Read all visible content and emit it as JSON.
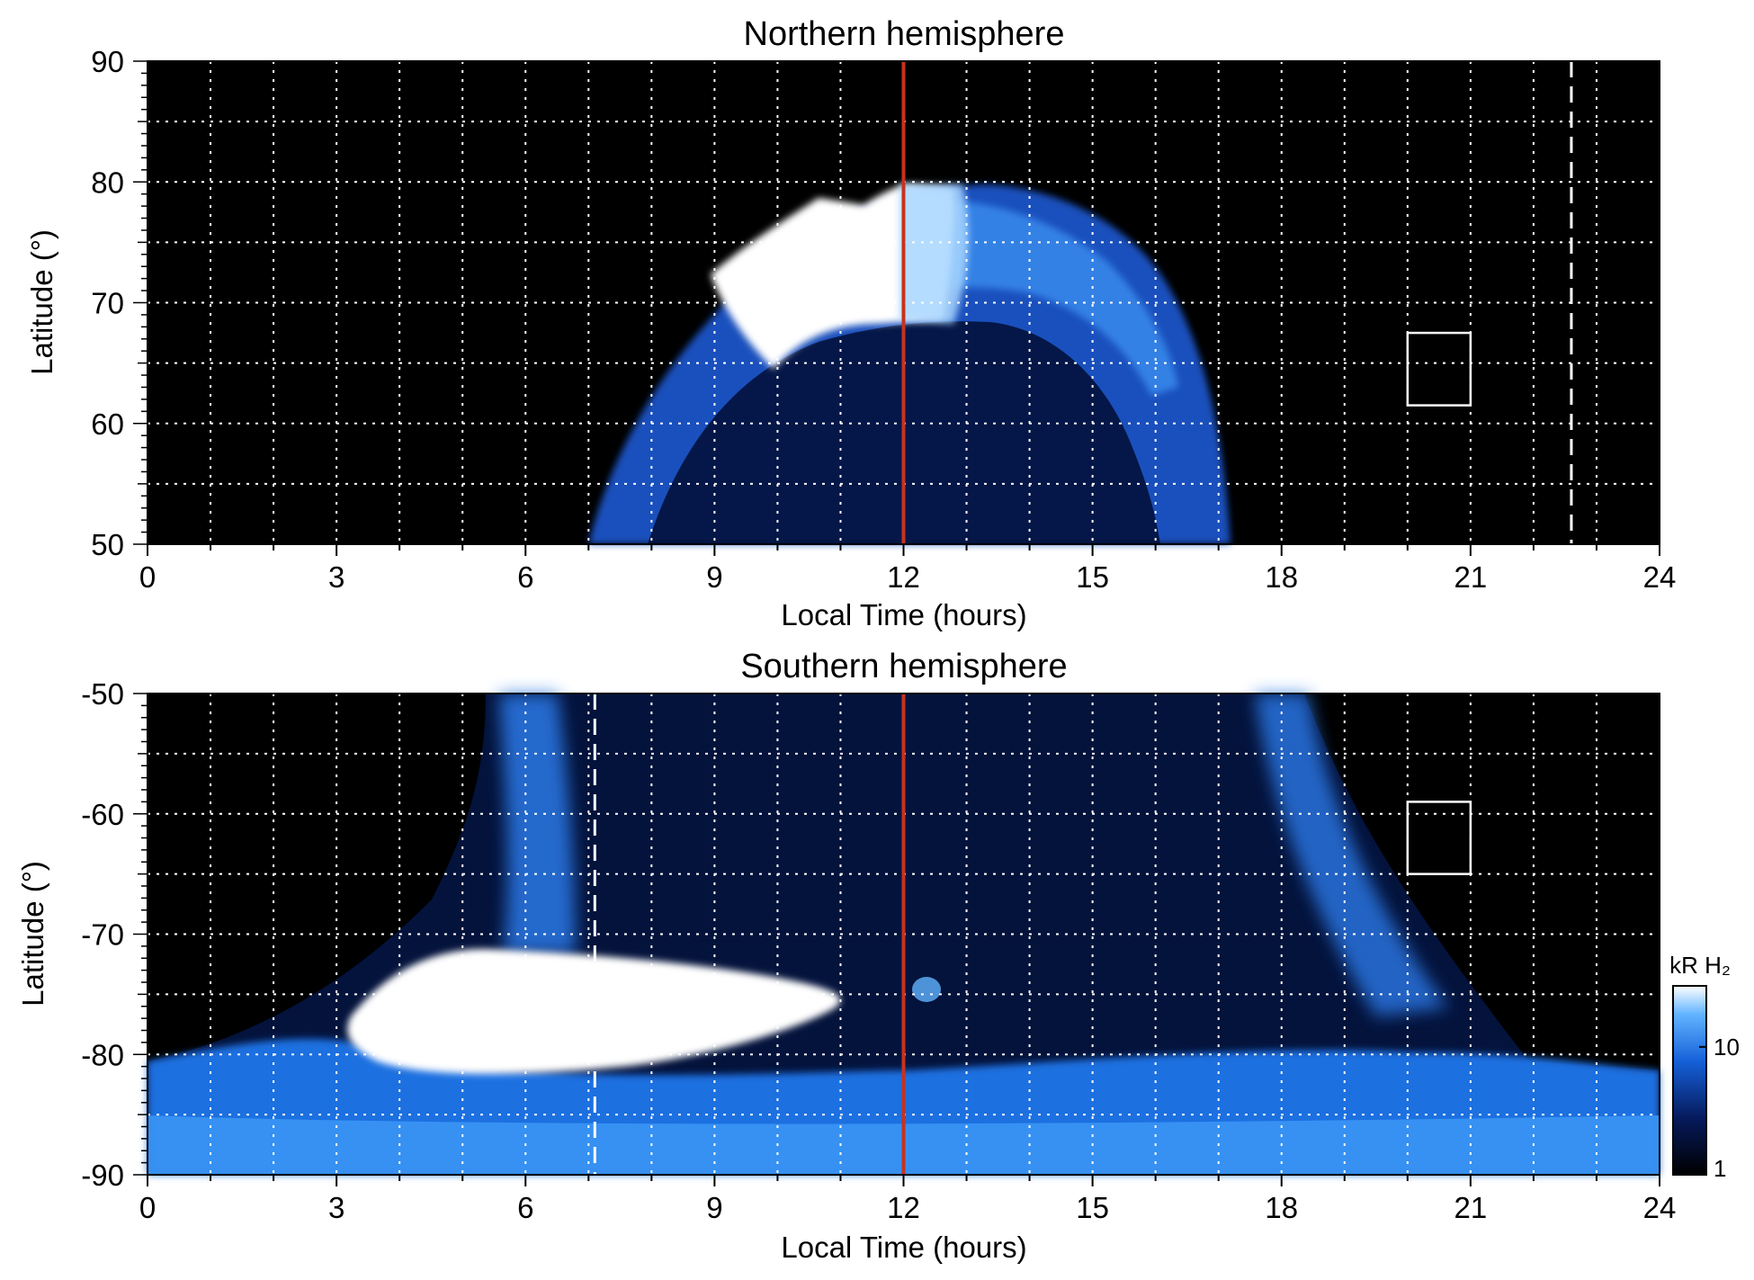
{
  "chart_data": [
    {
      "type": "heatmap",
      "title": "Northern hemisphere",
      "xlabel": "Local Time (hours)",
      "ylabel": "Latitude (°)",
      "xlim": [
        0,
        24
      ],
      "ylim": [
        50,
        90
      ],
      "x_ticks": [
        0,
        3,
        6,
        9,
        12,
        15,
        18,
        21,
        24
      ],
      "x_tick_labels": [
        "0",
        "3",
        "6",
        "9",
        "12",
        "15",
        "18",
        "21",
        "24"
      ],
      "y_ticks": [
        50,
        60,
        70,
        80,
        90
      ],
      "y_tick_labels": [
        "50",
        "60",
        "70",
        "80",
        "90"
      ],
      "grid": true,
      "noon_line_x": 12,
      "dashed_line_x": 22.6,
      "box": {
        "x": [
          20,
          21
        ],
        "y": [
          61.5,
          67.5
        ]
      },
      "auroral_oval": {
        "lt_start": 7.0,
        "lt_end": 17.2,
        "equatorward_lat": 50,
        "poleward_lat_peak": 80,
        "bright_region": {
          "lt": [
            9.8,
            12.2
          ],
          "lat": [
            64,
            78
          ]
        }
      },
      "colors": {
        "background": "#000000",
        "noon_line": "#c8321e",
        "grid": "#ffffff",
        "bright": "#ffffff",
        "mid": "#3a8ef0",
        "dim": "#0d2a8a"
      }
    },
    {
      "type": "heatmap",
      "title": "Southern hemisphere",
      "xlabel": "Local Time (hours)",
      "ylabel": "Latitude (°)",
      "xlim": [
        0,
        24
      ],
      "ylim": [
        -90,
        -50
      ],
      "x_ticks": [
        0,
        3,
        6,
        9,
        12,
        15,
        18,
        21,
        24
      ],
      "x_tick_labels": [
        "0",
        "3",
        "6",
        "9",
        "12",
        "15",
        "18",
        "21",
        "24"
      ],
      "y_ticks": [
        -90,
        -80,
        -70,
        -60,
        -50
      ],
      "y_tick_labels": [
        "-90",
        "-80",
        "-70",
        "-60",
        "-50"
      ],
      "grid": true,
      "noon_line_x": 12,
      "dashed_line_x": 7.1,
      "box": {
        "x": [
          20,
          21
        ],
        "y": [
          -65,
          -59
        ]
      },
      "bright_region": {
        "lt": [
          3.2,
          10.8
        ],
        "lat": [
          -81,
          -72
        ]
      },
      "colors": {
        "background": "#000000",
        "noon_line": "#c8321e",
        "grid": "#ffffff",
        "bright": "#ffffff",
        "mid": "#3a8ef0",
        "dim": "#0d2a8a"
      }
    }
  ],
  "colorbar": {
    "label": "kR H₂",
    "scale": "log",
    "range": [
      1,
      30
    ],
    "ticks": [
      1,
      10
    ],
    "tick_labels": [
      "1",
      "10"
    ],
    "colors": [
      "#000000",
      "#061a5c",
      "#1560d8",
      "#62b4ff",
      "#ffffff"
    ]
  }
}
